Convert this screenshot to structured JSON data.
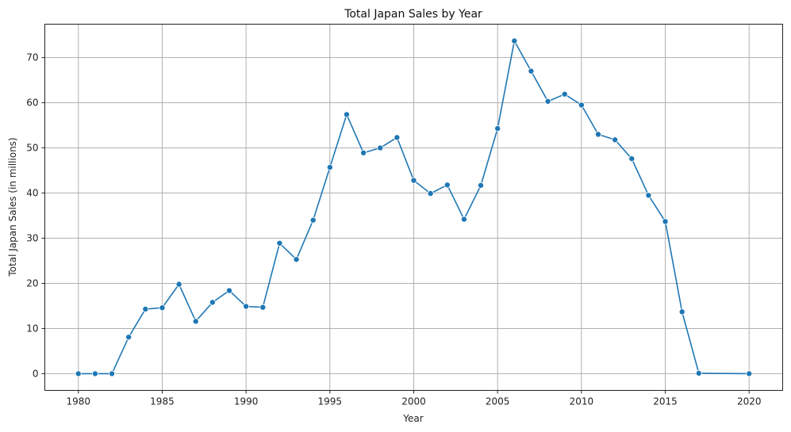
{
  "chart_data": {
    "type": "line",
    "title": "Total Japan Sales by Year",
    "xlabel": "Year",
    "ylabel": "Total Japan Sales (in millions)",
    "xlim": [
      1978,
      2022
    ],
    "ylim": [
      -3.7,
      77.4
    ],
    "xticks": [
      1980,
      1985,
      1990,
      1995,
      2000,
      2005,
      2010,
      2015,
      2020
    ],
    "yticks": [
      0,
      10,
      20,
      30,
      40,
      50,
      60,
      70
    ],
    "grid": true,
    "marker": "circle",
    "series": [
      {
        "color": "#1f77b4",
        "x": [
          1980,
          1981,
          1982,
          1983,
          1984,
          1985,
          1986,
          1987,
          1988,
          1989,
          1990,
          1991,
          1992,
          1993,
          1994,
          1995,
          1996,
          1997,
          1998,
          1999,
          2000,
          2001,
          2002,
          2003,
          2004,
          2005,
          2006,
          2007,
          2008,
          2009,
          2010,
          2011,
          2012,
          2013,
          2014,
          2015,
          2016,
          2017,
          2020
        ],
        "y": [
          0.0,
          0.0,
          0.0,
          8.1,
          14.3,
          14.6,
          19.8,
          11.6,
          15.8,
          18.4,
          14.9,
          14.7,
          28.9,
          25.3,
          34.0,
          45.7,
          57.4,
          48.9,
          50.0,
          52.3,
          42.8,
          39.9,
          41.8,
          34.2,
          41.7,
          54.3,
          73.7,
          67.0,
          60.3,
          61.9,
          59.5,
          53.0,
          51.8,
          47.6,
          39.5,
          33.7,
          13.7,
          0.1,
          0.0
        ]
      }
    ]
  }
}
